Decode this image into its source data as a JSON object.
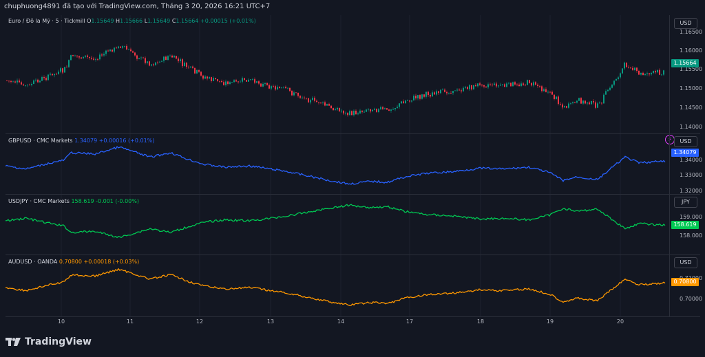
{
  "header": {
    "text": "chuphuong4891 đã tạo với TradingView.com, Tháng 3 20, 2026 16:21 UTC+7"
  },
  "panes": [
    {
      "id": "eurusd",
      "title": "Euro / Đô la Mỹ · 5 · Tickmill",
      "ohlc": [
        {
          "k": "O",
          "v": "1.15649"
        },
        {
          "k": "H",
          "v": "1.15666"
        },
        {
          "k": "L",
          "v": "1.15649"
        },
        {
          "k": "C",
          "v": "1.15664"
        }
      ],
      "change": "+0.00015 (+0.01%)",
      "currency": "USD",
      "ticks": [
        "1.16500",
        "1.16000",
        "1.15500",
        "1.15000",
        "1.14500",
        "1.14000"
      ],
      "price": "1.15664",
      "color": "#089981"
    },
    {
      "id": "gbpusd",
      "title": "GBPUSD · CMC Markets",
      "value": "1.34079",
      "change": "+0.00016 (+0.01%)",
      "currency": "USD",
      "ticks": [
        "1.34000",
        "1.33000",
        "1.32000"
      ],
      "price": "1.34079",
      "color": "#2962ff"
    },
    {
      "id": "usdjpy",
      "title": "USDJPY · CMC Markets",
      "value": "158.619",
      "change": "-0.001 (-0.00%)",
      "currency": "JPY",
      "ticks": [
        "159.000",
        "158.000"
      ],
      "price": "158.619",
      "color": "#00c853"
    },
    {
      "id": "audusd",
      "title": "AUDUSD · OANDA",
      "value": "0.70800",
      "change": "+0.00018 (+0.03%)",
      "currency": "USD",
      "ticks": [
        "0.71000",
        "0.70000"
      ],
      "price": "0.70800",
      "color": "#ff9800"
    }
  ],
  "time_axis": [
    "10",
    "11",
    "12",
    "13",
    "14",
    "17",
    "18",
    "19",
    "20"
  ],
  "logo": {
    "text": "TradingView"
  },
  "colors": {
    "up": "#089981",
    "down": "#f23645",
    "background": "#131722",
    "grid": "#2a2e39"
  }
}
